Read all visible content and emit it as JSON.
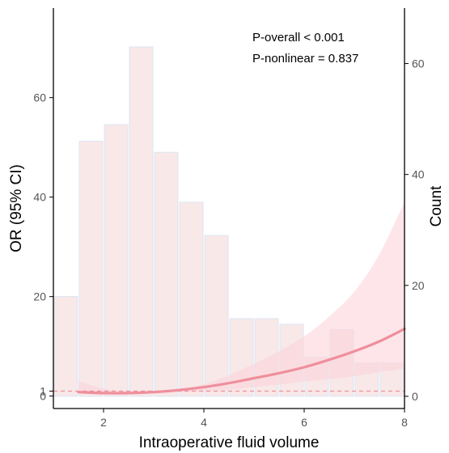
{
  "chart_data": {
    "type": "bar",
    "title": "",
    "xlabel": "Intraoperative fluid volume",
    "ylabel_left": "OR (95% CI)",
    "ylabel_right": "Count",
    "xlim": [
      1,
      8
    ],
    "ylim_left": [
      -2.5,
      78
    ],
    "ylim_right": [
      -2.2,
      70
    ],
    "x_ticks": [
      "2",
      "4",
      "6",
      "8"
    ],
    "y_left_ticks": [
      {
        "value": 0,
        "label": "0"
      },
      {
        "value": 1,
        "label": "1"
      },
      {
        "value": 20,
        "label": "20"
      },
      {
        "value": 40,
        "label": "40"
      },
      {
        "value": 60,
        "label": "60"
      }
    ],
    "y_right_ticks": [
      "0",
      "20",
      "40",
      "60"
    ],
    "annotations": [
      "P-overall < 0.001",
      "P-nonlinear = 0.837"
    ],
    "reference_line": 1,
    "histogram": {
      "name": "Count",
      "bin_width": 0.5,
      "bins": [
        {
          "x": 1.25,
          "count": 18
        },
        {
          "x": 1.75,
          "count": 46
        },
        {
          "x": 2.25,
          "count": 49
        },
        {
          "x": 2.75,
          "count": 63
        },
        {
          "x": 3.25,
          "count": 44
        },
        {
          "x": 3.75,
          "count": 35
        },
        {
          "x": 4.25,
          "count": 29
        },
        {
          "x": 4.75,
          "count": 14
        },
        {
          "x": 5.25,
          "count": 14
        },
        {
          "x": 5.75,
          "count": 13
        },
        {
          "x": 6.25,
          "count": 7
        },
        {
          "x": 6.75,
          "count": 12
        },
        {
          "x": 7.25,
          "count": 6
        },
        {
          "x": 7.75,
          "count": 6
        }
      ]
    },
    "curve": {
      "name": "OR",
      "x": [
        1.5,
        2.0,
        2.5,
        3.0,
        3.5,
        4.0,
        4.5,
        5.0,
        5.5,
        6.0,
        6.5,
        7.0,
        7.5,
        8.0
      ],
      "y": [
        0.8,
        0.6,
        0.6,
        0.8,
        1.2,
        1.8,
        2.6,
        3.6,
        4.6,
        5.8,
        7.3,
        9.0,
        11.0,
        13.5
      ],
      "ci_lower": [
        0.5,
        0.3,
        0.3,
        0.5,
        0.8,
        1.0,
        1.3,
        1.8,
        2.3,
        2.9,
        3.4,
        4.0,
        4.8,
        5.5
      ],
      "ci_upper": [
        3.0,
        1.5,
        0.8,
        1.0,
        1.4,
        2.4,
        4.2,
        6.5,
        9.0,
        12.0,
        16.0,
        21.0,
        28.5,
        39.0
      ]
    },
    "colors": {
      "bar_fill": "#f8e8e8",
      "bar_stroke": "#dde5f3",
      "ribbon": "#fbd3da",
      "curve": "#ef8f9c",
      "reference": "#ef8f9c"
    }
  }
}
